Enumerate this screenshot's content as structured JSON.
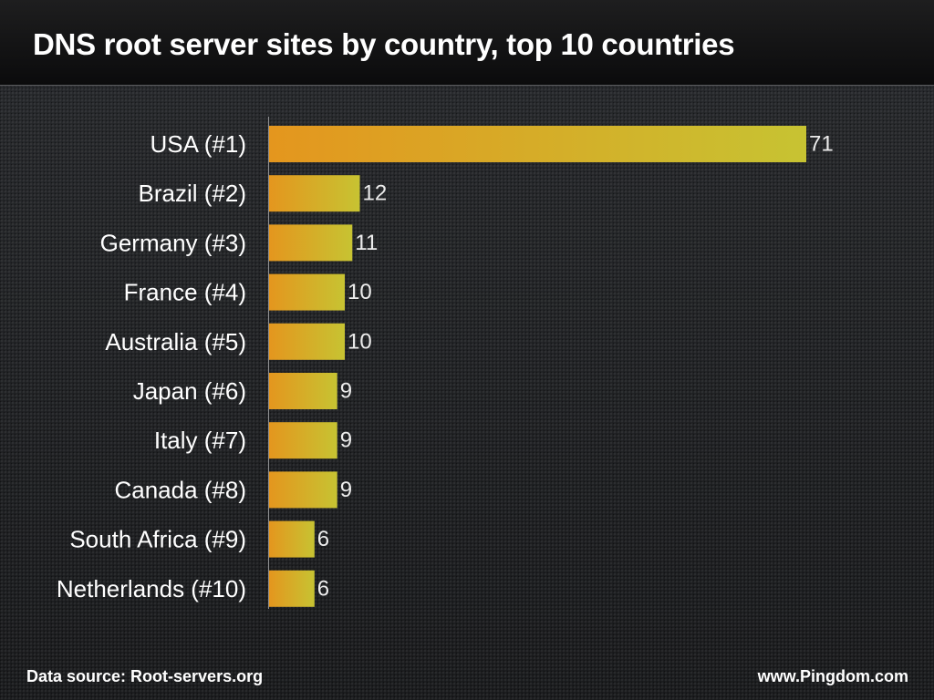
{
  "chart_data": {
    "type": "bar",
    "orientation": "horizontal",
    "title": "DNS root server sites by country, top 10 countries",
    "categories": [
      "USA (#1)",
      "Brazil (#2)",
      "Germany (#3)",
      "France (#4)",
      "Australia (#5)",
      "Japan (#6)",
      "Italy (#7)",
      "Canada (#8)",
      "South Africa (#9)",
      "Netherlands (#10)"
    ],
    "values": [
      71,
      12,
      11,
      10,
      10,
      9,
      9,
      9,
      6,
      6
    ],
    "value_labels": [
      "71",
      "12",
      "11",
      "10",
      "10",
      "9",
      "9",
      "9",
      "6",
      "6"
    ],
    "xlim": [
      0,
      71
    ],
    "grid": false,
    "legend": "none",
    "data_labels": "outside-end"
  },
  "footer": {
    "source": "Data source: Root-servers.org",
    "site": "www.Pingdom.com"
  },
  "colors": {
    "bar_start": "#e4961e",
    "bar_end": "#c7c332",
    "title_bar": "#111112",
    "background": "#1c1d1f",
    "axis": "#8e8f91"
  }
}
